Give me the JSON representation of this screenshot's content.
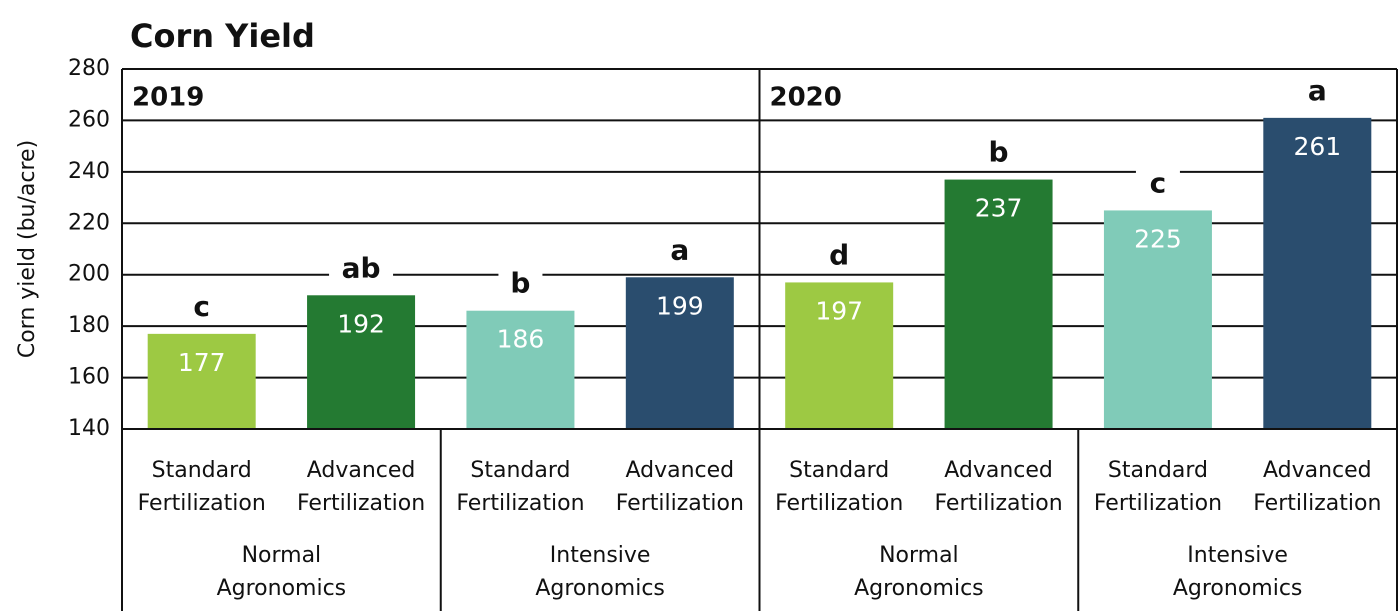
{
  "chart_data": {
    "type": "bar",
    "title": "Corn Yield",
    "y_label": "Corn yield (bu/acre)",
    "panels": [
      "2019",
      "2020"
    ],
    "groups": [
      "Normal Agronomics",
      "Intensive Agronomics",
      "Normal Agronomics",
      "Intensive Agronomics"
    ],
    "categories": [
      "Standard Fertilization",
      "Advanced Fertilization",
      "Standard Fertilization",
      "Advanced Fertilization",
      "Standard Fertilization",
      "Advanced Fertilization",
      "Standard Fertilization",
      "Advanced Fertilization"
    ],
    "values": [
      177,
      192,
      186,
      199,
      197,
      237,
      225,
      261
    ],
    "letters": [
      "c",
      "ab",
      "b",
      "a",
      "d",
      "b",
      "c",
      "a"
    ],
    "colors": [
      "#9dc943",
      "#247a32",
      "#80cbb8",
      "#2a4d6e",
      "#9dc943",
      "#247a32",
      "#80cbb8",
      "#2a4d6e"
    ],
    "ylim": [
      140,
      280
    ],
    "yticks": [
      140,
      160,
      180,
      200,
      220,
      240,
      260,
      280
    ],
    "grid": true
  }
}
